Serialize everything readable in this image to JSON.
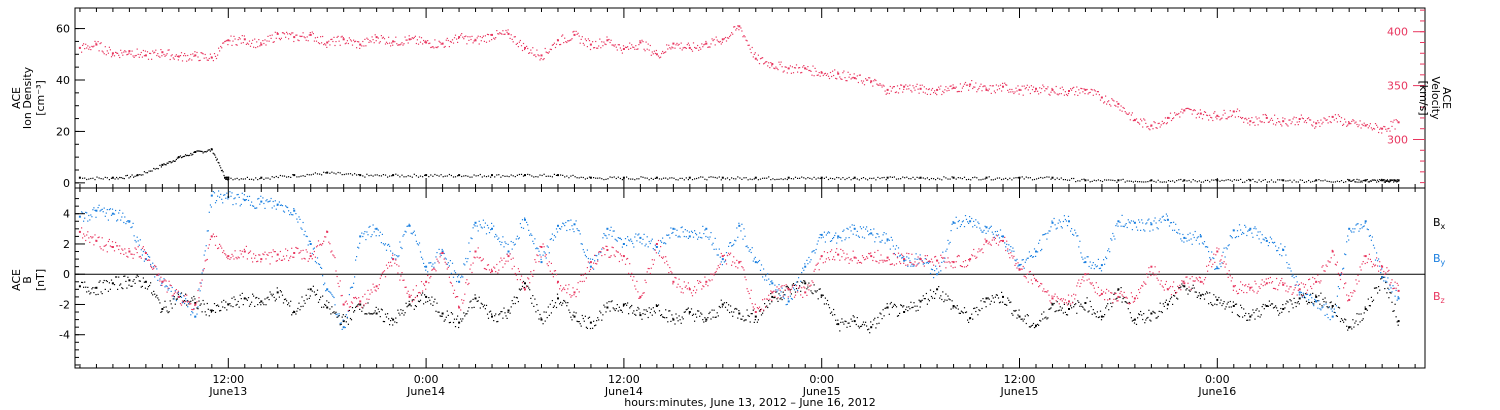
{
  "colors": {
    "background": "#ffffff",
    "axis": "#000000",
    "density": "#000000",
    "velocity": "#e8365f",
    "bx": "#000000",
    "by": "#1a7fe0",
    "bz": "#e8365f"
  },
  "chart_data": [
    {
      "type": "scatter",
      "panel": "top",
      "x_unit": "hours since 2012-06-13 00:00",
      "xlim": [
        2.7,
        84.6
      ],
      "grid": false,
      "left_axis": {
        "label": [
          "ACE",
          "Ion Density",
          "[cm⁻³]"
        ],
        "ylim": [
          -2,
          68
        ],
        "ticks": [
          0,
          20,
          40,
          60
        ],
        "tick_labels": [
          "0",
          "20",
          "40",
          "60"
        ]
      },
      "right_axis": {
        "label": [
          "ACE",
          "Velocity",
          "[km/s]"
        ],
        "ylim": [
          255,
          422
        ],
        "ticks": [
          300,
          350,
          400
        ],
        "tick_labels": [
          "300",
          "350",
          "400"
        ]
      },
      "series": [
        {
          "axis": "left",
          "color": "#000000",
          "x": [
            3,
            5,
            6.5,
            8,
            9,
            10,
            11,
            11.8,
            12,
            14,
            16,
            18,
            20,
            22,
            24,
            26,
            28,
            30,
            32,
            34,
            36,
            38,
            40,
            42,
            44,
            46,
            48,
            50,
            52,
            54,
            56,
            58,
            60,
            62,
            64,
            66,
            68,
            70,
            72,
            74,
            76,
            78,
            80,
            81,
            82,
            82.5,
            83
          ],
          "y": [
            2,
            2,
            3,
            7,
            10,
            12,
            13,
            2,
            2,
            2,
            3,
            4,
            3,
            3,
            3,
            3,
            3,
            3,
            3,
            2,
            2,
            2,
            2,
            2,
            2,
            2,
            2,
            2,
            2,
            2,
            2,
            2,
            2,
            2,
            1,
            1,
            1,
            1,
            1,
            1,
            1,
            1,
            1,
            1,
            1,
            1,
            1
          ]
        },
        {
          "axis": "right",
          "color": "#e8365f",
          "x": [
            3,
            4,
            5,
            6,
            7,
            8,
            9,
            10,
            11,
            12,
            13,
            14,
            15,
            16,
            17,
            18,
            19,
            20,
            21,
            22,
            23,
            24,
            25,
            26,
            27,
            28,
            29,
            30,
            31,
            32,
            33,
            34,
            35,
            36,
            37,
            38,
            39,
            40,
            41,
            42,
            43,
            44,
            45,
            46,
            47,
            48,
            49,
            50,
            51,
            52,
            53,
            54,
            55,
            56,
            57,
            58,
            59,
            60,
            61,
            62,
            63,
            64,
            65,
            66,
            67,
            68,
            69,
            70,
            71,
            72,
            73,
            74,
            75,
            76,
            77,
            78,
            79,
            80,
            81,
            82,
            83
          ],
          "y": [
            385,
            388,
            380,
            382,
            378,
            381,
            377,
            378,
            376,
            392,
            393,
            388,
            398,
            395,
            397,
            390,
            393,
            388,
            395,
            391,
            393,
            390,
            389,
            395,
            392,
            397,
            398,
            385,
            378,
            392,
            397,
            388,
            392,
            384,
            390,
            379,
            389,
            385,
            389,
            393,
            405,
            375,
            370,
            366,
            366,
            362,
            361,
            357,
            354,
            346,
            349,
            347,
            346,
            348,
            351,
            346,
            349,
            346,
            347,
            346,
            345,
            346,
            339,
            333,
            318,
            313,
            320,
            327,
            324,
            322,
            326,
            317,
            320,
            317,
            319,
            315,
            321,
            315,
            313,
            310,
            316
          ]
        }
      ]
    },
    {
      "type": "scatter",
      "panel": "bottom",
      "x_unit": "hours since 2012-06-13 00:00",
      "xlim": [
        2.7,
        84.6
      ],
      "grid": false,
      "y_axis": {
        "label": [
          "ACE",
          "B",
          "[nT]"
        ],
        "ylim": [
          -6.2,
          5.7
        ],
        "ticks": [
          -4,
          -2,
          0,
          2,
          4
        ],
        "tick_labels": [
          "-4",
          "-2",
          "0",
          "2",
          "4"
        ]
      },
      "zero_line": 0,
      "legend": {
        "position": "right",
        "entries": [
          "B",
          "B",
          "B"
        ],
        "subscripts": [
          "x",
          "y",
          "z"
        ]
      },
      "series": [
        {
          "name": "Bx",
          "color": "#000000",
          "x": [
            3,
            4,
            5,
            6,
            7,
            8,
            9,
            10,
            11,
            12,
            13,
            14,
            15,
            16,
            17,
            18,
            19,
            20,
            21,
            22,
            23,
            24,
            25,
            26,
            27,
            28,
            29,
            30,
            31,
            32,
            33,
            34,
            35,
            36,
            37,
            38,
            39,
            40,
            41,
            42,
            43,
            44,
            45,
            46,
            47,
            48,
            49,
            50,
            51,
            52,
            53,
            54,
            55,
            56,
            57,
            58,
            59,
            60,
            61,
            62,
            63,
            64,
            65,
            66,
            67,
            68,
            69,
            70,
            71,
            72,
            73,
            74,
            75,
            76,
            77,
            78,
            79,
            80,
            81,
            82,
            83
          ],
          "y": [
            -0.8,
            -0.9,
            -0.6,
            -0.4,
            -0.5,
            -2.3,
            -1.5,
            -1.9,
            -2.4,
            -2,
            -1.6,
            -1.8,
            -1.2,
            -2.5,
            -1,
            -2.2,
            -3.1,
            -2,
            -2.6,
            -3,
            -2,
            -1.5,
            -2.6,
            -3.2,
            -1.6,
            -2.8,
            -2.4,
            -0.6,
            -3,
            -1.6,
            -2.8,
            -3.2,
            -2.2,
            -2,
            -2.7,
            -2.1,
            -3,
            -2.5,
            -3,
            -2,
            -2.6,
            -2.8,
            -1.5,
            -1,
            -0.6,
            -1.4,
            -3.3,
            -3.1,
            -3.5,
            -2.2,
            -2.5,
            -1.8,
            -1,
            -2.1,
            -2.9,
            -1.6,
            -1.5,
            -2.8,
            -3.4,
            -2,
            -2.3,
            -1.9,
            -2.8,
            -1,
            -3,
            -2.6,
            -2,
            -0.8,
            -1.4,
            -1.7,
            -2.1,
            -2.8,
            -2.1,
            -2.3,
            -1.6,
            -1.5,
            -2.1,
            -3.5,
            -2.3,
            -0.2,
            -3.1
          ]
        },
        {
          "name": "By",
          "color": "#1a7fe0",
          "x": [
            3,
            4,
            5,
            6,
            7,
            8,
            9,
            10,
            11,
            12,
            13,
            14,
            15,
            16,
            17,
            18,
            19,
            20,
            21,
            22,
            23,
            24,
            25,
            26,
            27,
            28,
            29,
            30,
            31,
            32,
            33,
            34,
            35,
            36,
            37,
            38,
            39,
            40,
            41,
            42,
            43,
            44,
            45,
            46,
            47,
            48,
            49,
            50,
            51,
            52,
            53,
            54,
            55,
            56,
            57,
            58,
            59,
            60,
            61,
            62,
            63,
            64,
            65,
            66,
            67,
            68,
            69,
            70,
            71,
            72,
            73,
            74,
            75,
            76,
            77,
            78,
            79,
            80,
            81,
            82,
            83
          ],
          "y": [
            3.8,
            4.2,
            4,
            3.5,
            1,
            -0.5,
            -1.5,
            -2.8,
            5.2,
            5.1,
            4.9,
            4.8,
            4.6,
            4.2,
            2,
            -1,
            -3.5,
            2.5,
            3,
            1,
            3.2,
            0.5,
            1.5,
            -0.5,
            3.4,
            3,
            1.5,
            3.6,
            0.8,
            3.2,
            3.3,
            0.5,
            3,
            2,
            2.4,
            1.8,
            3,
            2.5,
            3,
            1,
            3.2,
            0.8,
            -0.6,
            -1.8,
            0.5,
            2.6,
            2.5,
            3,
            2.7,
            2.3,
            0.9,
            1,
            0,
            3.4,
            3.5,
            3.1,
            2.5,
            0.6,
            1.5,
            3.4,
            3.5,
            0.8,
            0.6,
            3.5,
            3.4,
            3.3,
            3.6,
            2.4,
            2.5,
            0.4,
            2.9,
            3,
            2.2,
            1.6,
            -1.2,
            -1.8,
            -2.8,
            3,
            3.5,
            -0.2,
            -1.6
          ]
        },
        {
          "name": "Bz",
          "color": "#e8365f",
          "x": [
            3,
            4,
            5,
            6,
            7,
            8,
            9,
            10,
            11,
            12,
            13,
            14,
            15,
            16,
            17,
            18,
            19,
            20,
            21,
            22,
            23,
            24,
            25,
            26,
            27,
            28,
            29,
            30,
            31,
            32,
            33,
            34,
            35,
            36,
            37,
            38,
            39,
            40,
            41,
            42,
            43,
            44,
            45,
            46,
            47,
            48,
            49,
            50,
            51,
            52,
            53,
            54,
            55,
            56,
            57,
            58,
            59,
            60,
            61,
            62,
            63,
            64,
            65,
            66,
            67,
            68,
            69,
            70,
            71,
            72,
            73,
            74,
            75,
            76,
            77,
            78,
            79,
            80,
            81,
            82,
            83
          ],
          "y": [
            2.8,
            2.2,
            1.8,
            1.5,
            1.4,
            -0.5,
            -1.5,
            -2,
            2.5,
            1.2,
            1.5,
            1,
            1.3,
            1.4,
            1.2,
            2.8,
            -2,
            -1.8,
            -0.8,
            1,
            -1.5,
            -0.5,
            1.4,
            -2.2,
            1.5,
            0.2,
            1.2,
            -1,
            1.8,
            -0.5,
            -1.2,
            0.8,
            1.6,
            1.2,
            -1.5,
            2,
            -0.5,
            -1,
            -0.5,
            1.2,
            0.8,
            -2.5,
            -1.2,
            -1,
            -1.2,
            1.2,
            1.3,
            1.1,
            1.2,
            1.1,
            1,
            1,
            0.9,
            0.8,
            1,
            2.2,
            2.2,
            0.3,
            -0.4,
            -1.6,
            -1.8,
            0,
            -1.3,
            -1.5,
            -1.6,
            0.5,
            -1,
            -0.6,
            -0.5,
            1.5,
            -0.8,
            -0.9,
            -0.6,
            -0.7,
            -1,
            -0.5,
            1.5,
            -1.7,
            1.2,
            0.5,
            -1.1
          ]
        }
      ]
    }
  ],
  "x_axis": {
    "ticks": [
      12,
      24,
      36,
      48,
      60,
      72
    ],
    "tick_labels": [
      "12:00",
      "0:00",
      "12:00",
      "0:00",
      "12:00",
      "0:00"
    ],
    "day_labels": [
      "June13",
      "June14",
      "June14",
      "June15",
      "June15",
      "June16"
    ],
    "minor_tick_step_hours": 1,
    "title": "hours:minutes, June 13, 2012 – June 16, 2012"
  }
}
